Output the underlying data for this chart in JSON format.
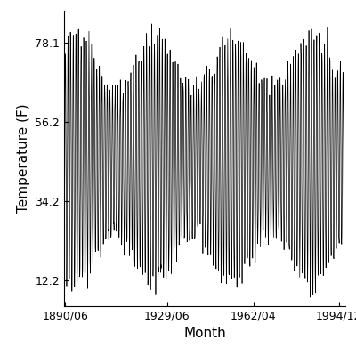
{
  "title": "",
  "xlabel": "Month",
  "ylabel": "Temperature (F)",
  "xlim_start_year": 1890,
  "xlim_start_month": 1,
  "xlim_end_year": 1997,
  "xlim_end_month": 6,
  "ylim": [
    5.0,
    87.0
  ],
  "yticks": [
    12.2,
    34.2,
    56.2,
    78.1
  ],
  "xtick_labels": [
    "1890/06",
    "1929/06",
    "1962/04",
    "1994/12"
  ],
  "xtick_positions_year_month": [
    [
      1890,
      6
    ],
    [
      1929,
      6
    ],
    [
      1962,
      4
    ],
    [
      1994,
      12
    ]
  ],
  "data_start_year": 1889,
  "data_end_year": 1996,
  "seasonal_mean": 45.15,
  "seasonal_amplitude": 27.5,
  "background_color": "#ffffff",
  "line_color": "#000000",
  "line_width": 0.5,
  "figsize": [
    4.0,
    4.0
  ],
  "dpi": 100,
  "axis_label_fontsize": 11,
  "tick_fontsize": 9
}
